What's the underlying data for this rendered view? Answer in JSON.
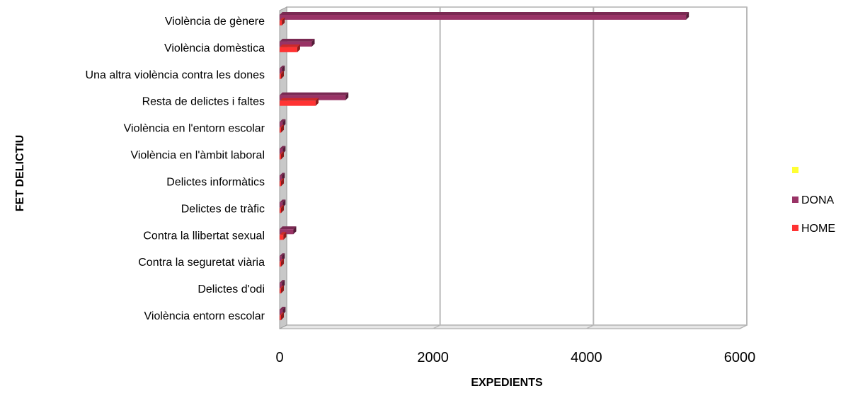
{
  "chart_data": {
    "type": "bar",
    "orientation": "horizontal",
    "three_d": true,
    "xlabel": "EXPEDIENTS",
    "ylabel": "FET DELICTIU",
    "xlim": [
      0,
      6000
    ],
    "xticks": [
      0,
      2000,
      4000,
      6000
    ],
    "grid": true,
    "legend_position": "right",
    "categories": [
      "Violència de gènere",
      "Violència domèstica",
      "Una altra violència contra les dones",
      "Resta de delictes i faltes",
      "Violència en l'entorn escolar",
      "Violència en l'àmbit laboral",
      "Delictes informàtics",
      "Delictes de tràfic",
      "Contra la llibertat sexual",
      "Contra la seguretat viària",
      "Delictes d'odi",
      "Violència entorn escolar"
    ],
    "series": [
      {
        "name": "",
        "color": "#FFFF33",
        "values": [
          0,
          0,
          0,
          0,
          0,
          0,
          0,
          0,
          0,
          0,
          0,
          0
        ]
      },
      {
        "name": "DONA",
        "color": "#993366",
        "values": [
          5300,
          420,
          30,
          860,
          40,
          40,
          30,
          40,
          180,
          30,
          30,
          40
        ]
      },
      {
        "name": "HOME",
        "color": "#FF3333",
        "values": [
          30,
          230,
          10,
          470,
          10,
          10,
          10,
          10,
          50,
          10,
          10,
          10
        ]
      }
    ]
  }
}
